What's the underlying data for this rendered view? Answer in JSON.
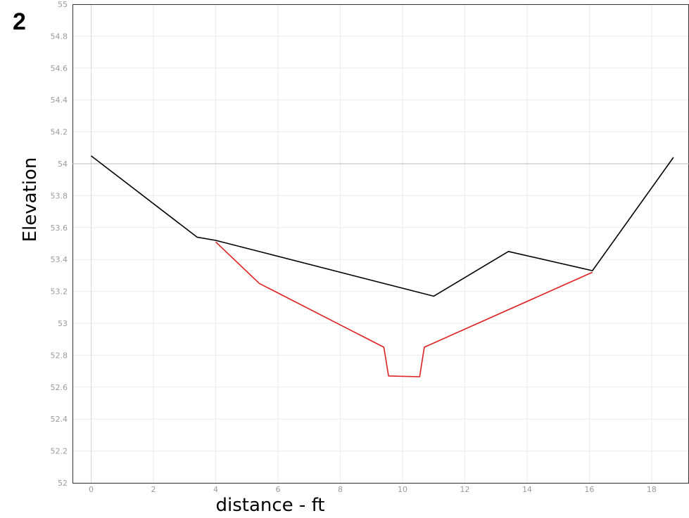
{
  "panel_label": "2",
  "chart_data": {
    "type": "line",
    "xlabel": "distance - ft",
    "ylabel": "Elevation",
    "xlim": [
      -0.6,
      19.2
    ],
    "ylim": [
      52,
      55
    ],
    "x_ticks": [
      0,
      2,
      4,
      6,
      8,
      10,
      12,
      14,
      16,
      18
    ],
    "y_ticks": [
      52,
      52.2,
      52.4,
      52.6,
      52.8,
      53,
      53.2,
      53.4,
      53.6,
      53.8,
      54,
      54.2,
      54.4,
      54.6,
      54.8,
      55
    ],
    "y_tick_labels": [
      "52",
      "52.2",
      "52.4",
      "52.6",
      "52.8",
      "53",
      "53.2",
      "53.4",
      "53.6",
      "53.8",
      "54",
      "54.2",
      "54.4",
      "54.6",
      "54.8",
      "55"
    ],
    "reference_line_y": 54,
    "grid": true,
    "series": [
      {
        "color": "#000000",
        "x": [
          0,
          3.4,
          4.0,
          11.0,
          13.4,
          16.1,
          18.7
        ],
        "y": [
          54.05,
          53.54,
          53.52,
          53.17,
          53.45,
          53.33,
          54.04
        ]
      },
      {
        "color": "#e02020",
        "x": [
          4.0,
          5.4,
          9.4,
          9.55,
          10.55,
          10.7,
          16.1
        ],
        "y": [
          53.51,
          53.25,
          52.85,
          52.67,
          52.665,
          52.85,
          53.32
        ]
      }
    ]
  }
}
